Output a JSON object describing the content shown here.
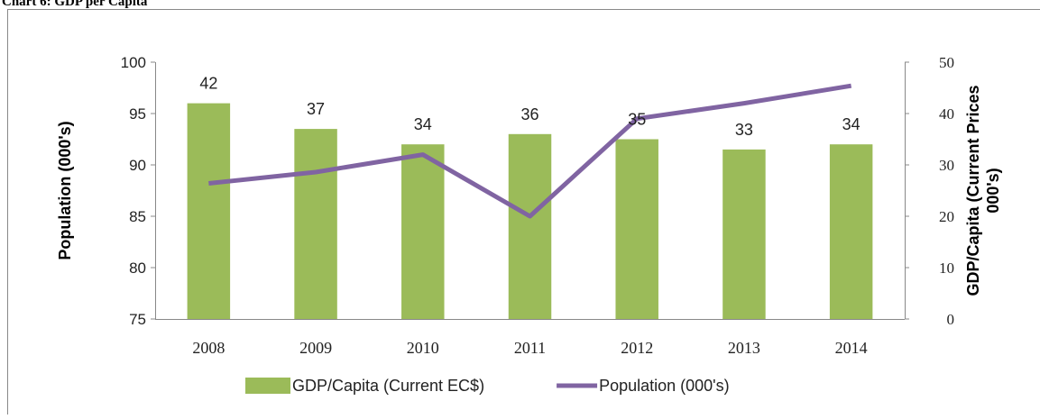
{
  "chart_data": {
    "type": "bar_line",
    "title": "Chart 6: GDP per Capita",
    "ylabel": "Population (000's)",
    "y2label": "GDP/Capita (Current Prices 000's)",
    "categories": [
      "2008",
      "2009",
      "2010",
      "2011",
      "2012",
      "2013",
      "2014"
    ],
    "series": [
      {
        "name": "GDP/Capita (Current EC$)",
        "type": "bar",
        "axis": "y2",
        "color": "#9bbb59",
        "values": [
          42,
          37,
          34,
          36,
          35,
          33,
          34
        ]
      },
      {
        "name": "Population (000's)",
        "type": "line",
        "axis": "y",
        "color": "#8064a2",
        "values": [
          88.2,
          89.3,
          91.0,
          85.0,
          94.5,
          96.0,
          97.7
        ]
      }
    ],
    "ylim": [
      75,
      100
    ],
    "yticks": [
      75,
      80,
      85,
      90,
      95,
      100
    ],
    "y2lim": [
      0,
      50
    ],
    "y2ticks": [
      0,
      10,
      20,
      30,
      40,
      50
    ],
    "legend": "bottom"
  }
}
